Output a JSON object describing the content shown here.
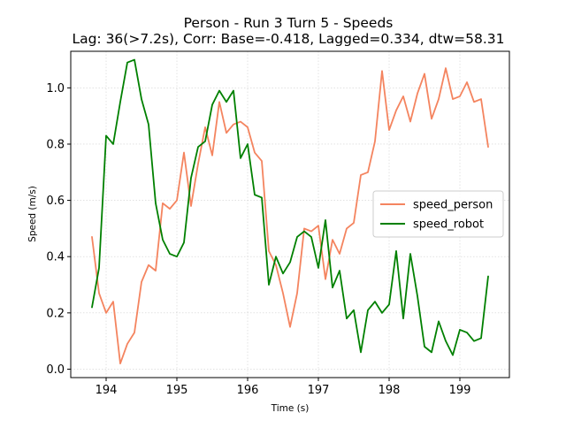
{
  "chart_data": {
    "type": "line",
    "title_line1": "Person - Run 3 Turn 5 - Speeds",
    "title_line2": "Lag: 36(>7.2s), Corr: Base=-0.418, Lagged=0.334, dtw=58.31",
    "xlabel": "Time (s)",
    "ylabel": "Speed (m/s)",
    "xlim": [
      193.5,
      199.7
    ],
    "ylim": [
      -0.03,
      1.13
    ],
    "xticks": [
      194,
      195,
      196,
      197,
      198,
      199
    ],
    "xtick_labels": [
      "194",
      "195",
      "196",
      "197",
      "198",
      "199"
    ],
    "yticks": [
      0.0,
      0.2,
      0.4,
      0.6,
      0.8,
      1.0
    ],
    "ytick_labels": [
      "0.0",
      "0.2",
      "0.4",
      "0.6",
      "0.8",
      "1.0"
    ],
    "grid": true,
    "legend_position": "center-right",
    "x": [
      193.8,
      193.9,
      194.0,
      194.1,
      194.2,
      194.3,
      194.4,
      194.5,
      194.6,
      194.7,
      194.8,
      194.9,
      195.0,
      195.1,
      195.2,
      195.3,
      195.4,
      195.5,
      195.6,
      195.7,
      195.8,
      195.9,
      196.0,
      196.1,
      196.2,
      196.3,
      196.4,
      196.5,
      196.6,
      196.7,
      196.8,
      196.9,
      197.0,
      197.1,
      197.2,
      197.3,
      197.4,
      197.5,
      197.6,
      197.7,
      197.8,
      197.9,
      198.0,
      198.1,
      198.2,
      198.3,
      198.4,
      198.5,
      198.6,
      198.7,
      198.8,
      198.9,
      199.0,
      199.1,
      199.2,
      199.3,
      199.4
    ],
    "series": [
      {
        "name": "speed_person",
        "color": "#f4845f",
        "values": [
          0.47,
          0.27,
          0.2,
          0.24,
          0.02,
          0.09,
          0.13,
          0.31,
          0.37,
          0.35,
          0.59,
          0.57,
          0.6,
          0.77,
          0.58,
          0.73,
          0.86,
          0.76,
          0.95,
          0.84,
          0.87,
          0.88,
          0.86,
          0.77,
          0.74,
          0.42,
          0.37,
          0.27,
          0.15,
          0.27,
          0.5,
          0.49,
          0.51,
          0.32,
          0.46,
          0.41,
          0.5,
          0.52,
          0.69,
          0.7,
          0.81,
          1.06,
          0.85,
          0.92,
          0.97,
          0.88,
          0.98,
          1.05,
          0.89,
          0.96,
          1.07,
          0.96,
          0.97,
          1.02,
          0.95,
          0.96,
          0.79
        ]
      },
      {
        "name": "speed_robot",
        "color": "#008000",
        "values": [
          0.22,
          0.36,
          0.83,
          0.8,
          0.95,
          1.09,
          1.1,
          0.96,
          0.87,
          0.59,
          0.46,
          0.41,
          0.4,
          0.45,
          0.68,
          0.79,
          0.81,
          0.94,
          0.99,
          0.95,
          0.99,
          0.75,
          0.8,
          0.62,
          0.61,
          0.3,
          0.4,
          0.34,
          0.38,
          0.47,
          0.49,
          0.47,
          0.36,
          0.53,
          0.29,
          0.35,
          0.18,
          0.21,
          0.06,
          0.21,
          0.24,
          0.2,
          0.23,
          0.42,
          0.18,
          0.41,
          0.26,
          0.08,
          0.06,
          0.17,
          0.1,
          0.05,
          0.14,
          0.13,
          0.1,
          0.11,
          0.33
        ]
      }
    ]
  }
}
